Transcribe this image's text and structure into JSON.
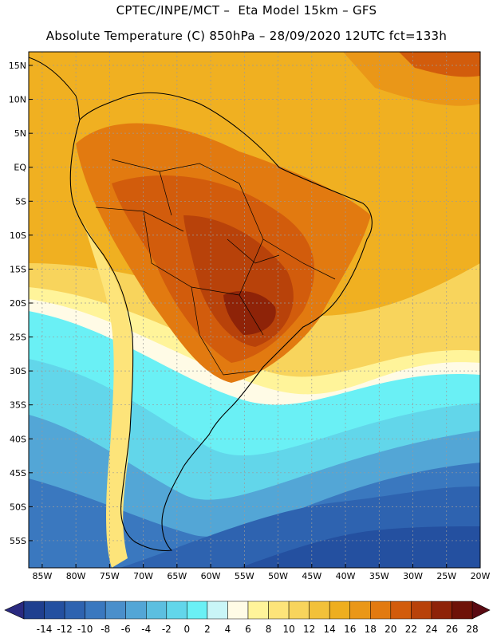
{
  "header": {
    "line1": "CPTEC/INPE/MCT –  Eta Model 15km – GFS",
    "line2": "Absolute Temperature (C) 850hPa – 28/09/2020 12UTC fct=133h"
  },
  "map": {
    "lat_labels": [
      "15N",
      "10N",
      "5N",
      "EQ",
      "5S",
      "10S",
      "15S",
      "20S",
      "25S",
      "30S",
      "35S",
      "40S",
      "45S",
      "50S",
      "55S"
    ],
    "lon_labels": [
      "85W",
      "80W",
      "75W",
      "70W",
      "65W",
      "60W",
      "55W",
      "50W",
      "45W",
      "40W",
      "35W",
      "30W",
      "25W",
      "20W"
    ],
    "lat_values": [
      15,
      10,
      5,
      0,
      -5,
      -10,
      -15,
      -20,
      -25,
      -30,
      -35,
      -40,
      -45,
      -50,
      -55
    ],
    "lon_values": [
      -85,
      -80,
      -75,
      -70,
      -65,
      -60,
      -55,
      -50,
      -45,
      -40,
      -35,
      -30,
      -25,
      -20
    ],
    "gridlines": true
  },
  "colorbar": {
    "labels": [
      "-14",
      "-12",
      "-10",
      "-8",
      "-6",
      "-4",
      "-2",
      "0",
      "2",
      "4",
      "6",
      "8",
      "10",
      "12",
      "14",
      "16",
      "18",
      "20",
      "22",
      "24",
      "26",
      "28"
    ],
    "colors": [
      "#1f3f8f",
      "#2450a0",
      "#2e63b0",
      "#3a78bf",
      "#4a8fcb",
      "#53a6d6",
      "#5cbfe0",
      "#62d6ea",
      "#6af0f5",
      "#c9f5f7",
      "#fffbe6",
      "#fff49a",
      "#fde47a",
      "#f8d45c",
      "#f2c13a",
      "#eeae1f",
      "#ea9718",
      "#e27a10",
      "#d25c0c",
      "#b8420a",
      "#8e2308",
      "#6e1208"
    ],
    "under_color": "#2a2a80",
    "over_color": "#5a0a12"
  }
}
